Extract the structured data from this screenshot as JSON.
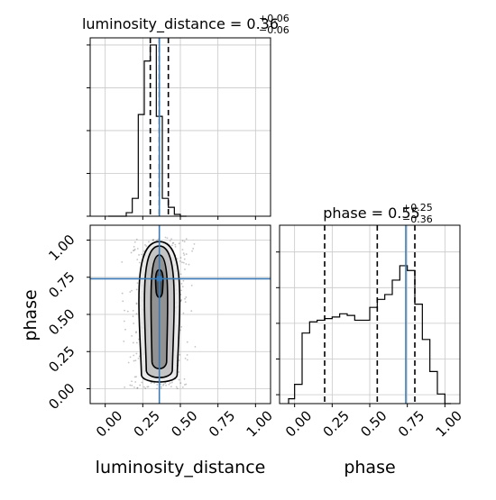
{
  "chart_data": {
    "type": "corner",
    "grid": true,
    "parameters": [
      "luminosity_distance",
      "phase"
    ],
    "axis_labels": {
      "x_left": "luminosity_distance",
      "x_right": "phase",
      "y_bottom_left": "phase"
    },
    "titles": {
      "luminosity_distance": {
        "prefix": "luminosity_distance = 0.36",
        "plus": "+0.06",
        "minus": "−0.06"
      },
      "phase": {
        "prefix": "phase = 0.55",
        "plus": "+0.25",
        "minus": "−0.36"
      }
    },
    "x_range": [
      -0.1,
      1.1
    ],
    "y_range": [
      -0.1,
      1.1
    ],
    "ticks": [
      0.0,
      0.25,
      0.5,
      0.75,
      1.0
    ],
    "tick_labels": [
      "0.00",
      "0.25",
      "0.50",
      "0.75",
      "1.00"
    ],
    "truth": {
      "luminosity_distance": 0.36,
      "phase": 0.74,
      "color": "#3a7ab5"
    },
    "hist_luminosity_distance": {
      "bin_edges": [
        0.02,
        0.06,
        0.1,
        0.14,
        0.18,
        0.22,
        0.26,
        0.3,
        0.34,
        0.38,
        0.42,
        0.46,
        0.5,
        0.54
      ],
      "counts": [
        0.0,
        0.0,
        0.0,
        0.02,
        0.1,
        0.57,
        0.87,
        0.96,
        0.56,
        0.1,
        0.05,
        0.01,
        0.0
      ],
      "quantiles": [
        0.3,
        0.36,
        0.42
      ]
    },
    "hist_phase": {
      "bin_edges": [
        -0.04,
        0.0,
        0.05,
        0.1,
        0.15,
        0.2,
        0.25,
        0.3,
        0.35,
        0.4,
        0.45,
        0.5,
        0.55,
        0.6,
        0.65,
        0.7,
        0.75,
        0.8,
        0.85,
        0.9,
        0.95,
        1.0,
        1.04
      ],
      "counts": [
        0.03,
        0.12,
        0.44,
        0.51,
        0.52,
        0.53,
        0.54,
        0.56,
        0.55,
        0.52,
        0.52,
        0.6,
        0.65,
        0.68,
        0.77,
        0.86,
        0.83,
        0.62,
        0.4,
        0.2,
        0.06,
        0.0
      ],
      "quantiles": [
        0.2,
        0.55,
        0.8
      ]
    },
    "density_2d": {
      "center_x": 0.36,
      "center_y": 0.73,
      "x_extent": [
        0.2,
        0.52
      ],
      "y_extent": [
        0.0,
        1.02
      ]
    }
  }
}
